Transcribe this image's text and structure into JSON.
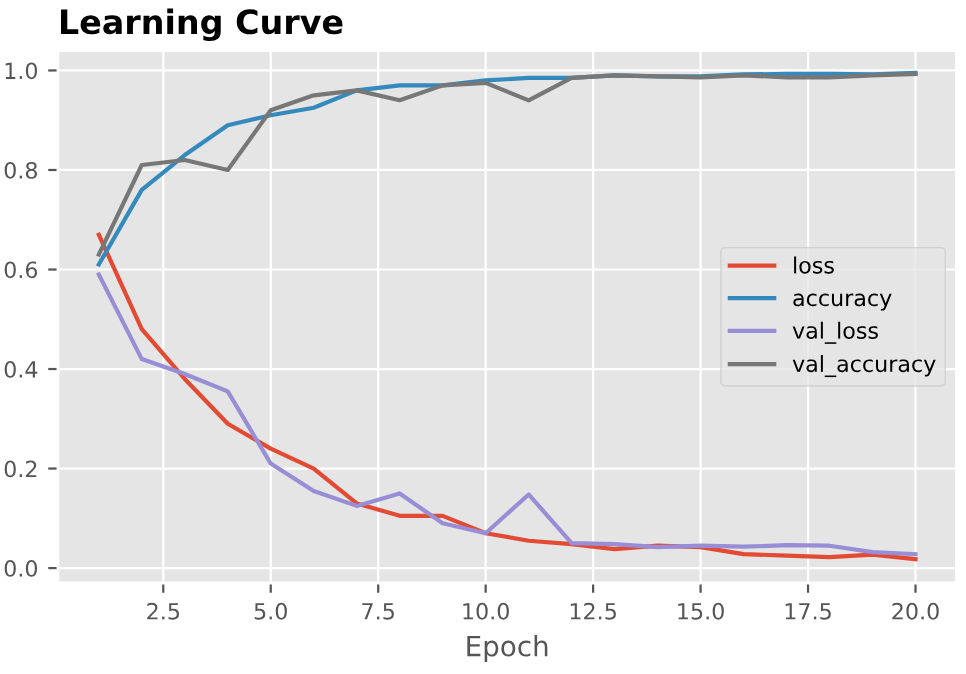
{
  "chart_data": {
    "type": "line",
    "title": "Learning Curve",
    "xlabel": "Epoch",
    "x": [
      1,
      2,
      3,
      4,
      5,
      6,
      7,
      8,
      9,
      10,
      11,
      12,
      13,
      14,
      15,
      16,
      17,
      18,
      19,
      20
    ],
    "series": [
      {
        "name": "loss",
        "color": "#e24a33",
        "values": [
          0.67,
          0.48,
          0.38,
          0.29,
          0.24,
          0.2,
          0.13,
          0.105,
          0.105,
          0.07,
          0.055,
          0.048,
          0.038,
          0.045,
          0.042,
          0.028,
          0.025,
          0.022,
          0.027,
          0.018
        ]
      },
      {
        "name": "accuracy",
        "color": "#348abd",
        "values": [
          0.61,
          0.76,
          0.83,
          0.89,
          0.91,
          0.925,
          0.96,
          0.97,
          0.97,
          0.98,
          0.985,
          0.985,
          0.99,
          0.988,
          0.988,
          0.992,
          0.993,
          0.993,
          0.992,
          0.995
        ]
      },
      {
        "name": "val_loss",
        "color": "#988ed5",
        "values": [
          0.59,
          0.42,
          0.39,
          0.355,
          0.21,
          0.155,
          0.125,
          0.15,
          0.09,
          0.07,
          0.148,
          0.05,
          0.048,
          0.042,
          0.045,
          0.043,
          0.046,
          0.045,
          0.032,
          0.028
        ]
      },
      {
        "name": "val_accuracy",
        "color": "#777777",
        "values": [
          0.63,
          0.81,
          0.82,
          0.8,
          0.92,
          0.95,
          0.96,
          0.94,
          0.97,
          0.975,
          0.94,
          0.985,
          0.99,
          0.988,
          0.986,
          0.99,
          0.986,
          0.986,
          0.99,
          0.993
        ]
      }
    ],
    "xlim": [
      0.05,
      20.95
    ],
    "xticks": [
      2.5,
      {
        "value": 5,
        "label": "5.0"
      },
      7.5,
      {
        "value": 10,
        "label": "10.0"
      },
      12.5,
      {
        "value": 15,
        "label": "15.0"
      },
      17.5,
      {
        "value": 20,
        "label": "20.0"
      }
    ],
    "ylim": [
      -0.03,
      1.04
    ],
    "yticks": [
      {
        "value": 0,
        "label": "0.0"
      },
      0.2,
      0.4,
      0.6,
      0.8,
      {
        "value": 1,
        "label": "1.0"
      }
    ],
    "grid": true,
    "legend": "center right",
    "marker": "none",
    "line_style": "solid"
  }
}
